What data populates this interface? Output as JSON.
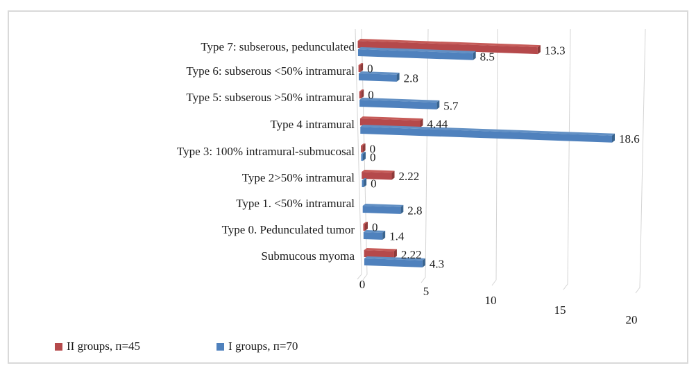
{
  "frame": {
    "border_color": "#d9d9d9",
    "background": "#ffffff"
  },
  "chart_data": {
    "type": "bar",
    "orientation": "horizontal",
    "style": "3d-clustered",
    "title": "",
    "categories": [
      "Type 7: subserous, pedunculated",
      "Type 6: subserous <50% intramural",
      "Type 5: subserous >50% intramural",
      "Type 4 intramural",
      "Type 3: 100% intramural-submucosal",
      "Type 2>50% intramural",
      "Type 1. <50% intramural",
      "Type 0. Pedunculated tumor",
      "Submucous myoma"
    ],
    "series": [
      {
        "name": "II groups, п=45",
        "color": "#b5494b",
        "values": [
          13.3,
          0,
          0,
          4.44,
          0,
          2.22,
          null,
          0,
          2.22
        ],
        "data_labels": [
          "13.3",
          "0",
          "0",
          "4.44",
          "0",
          "2.22",
          "",
          "0",
          "2.22"
        ]
      },
      {
        "name": "I groups, п=70",
        "color": "#4f81bd",
        "values": [
          8.5,
          2.8,
          5.7,
          18.6,
          0,
          0,
          2.8,
          1.4,
          4.3
        ],
        "data_labels": [
          "8.5",
          "2.8",
          "5.7",
          "18.6",
          "0",
          "0",
          "2.8",
          "1.4",
          "4.3"
        ]
      }
    ],
    "x_ticks": [
      "0",
      "5",
      "10",
      "15",
      "20"
    ],
    "xlim": [
      0,
      20
    ],
    "grid": true,
    "gridline_color": "#d4d4d4",
    "legend_position": "bottom-left"
  }
}
